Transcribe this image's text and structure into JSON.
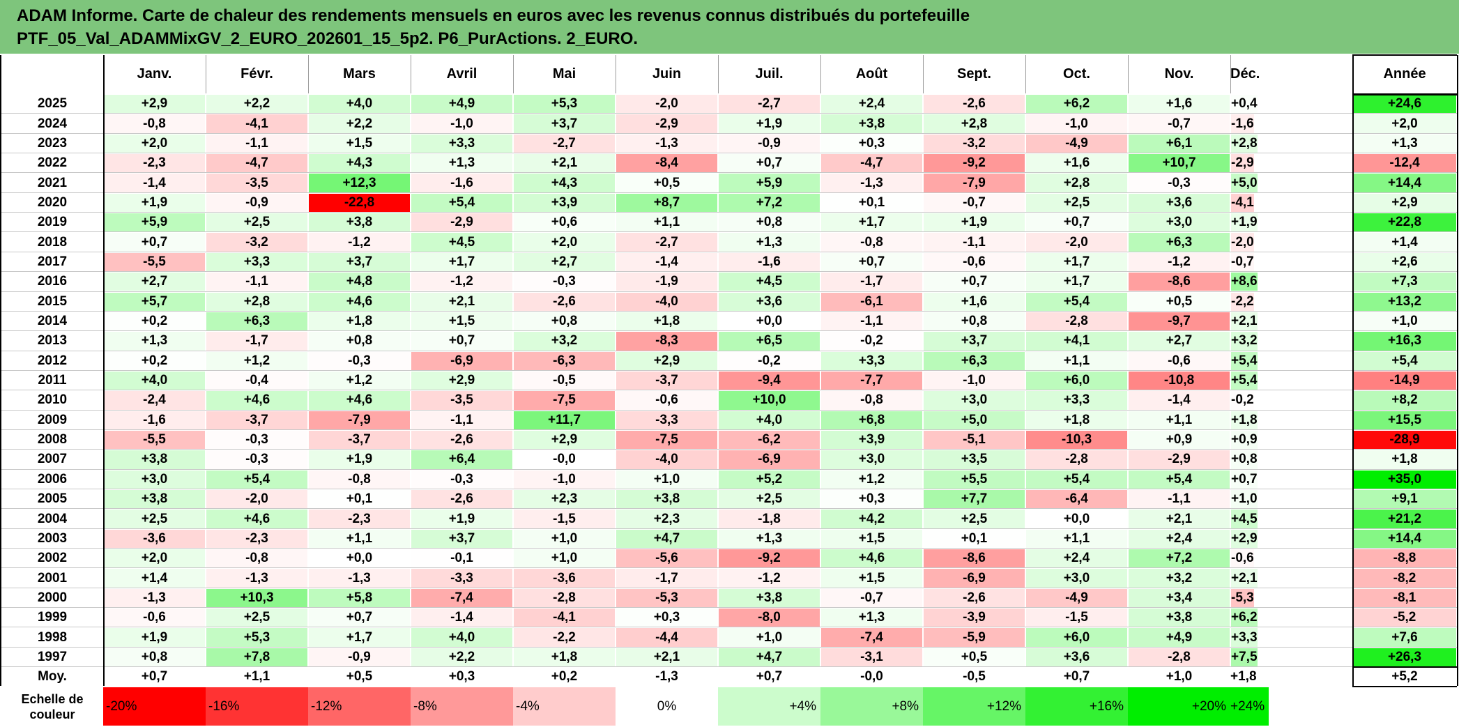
{
  "title": {
    "line1": "ADAM Informe. Carte de chaleur des rendements mensuels en euros avec les revenus connus distribués du portefeuille",
    "line2": "PTF_05_Val_ADAMMixGV_2_EURO_202601_15_5p2. P6_PurActions. 2_EURO."
  },
  "colors": {
    "title_bg": "#7ec57c",
    "negative_max": "#ff0000",
    "positive_max": "#00ee00",
    "neutral": "#ffffff"
  },
  "chart_data": {
    "type": "heatmap",
    "months": [
      "Janv.",
      "Févr.",
      "Mars",
      "Avril",
      "Mai",
      "Juin",
      "Juil.",
      "Août",
      "Sept.",
      "Oct.",
      "Nov.",
      "Déc."
    ],
    "year_header": "Année",
    "rows": [
      {
        "year": "2025",
        "values": [
          "+2,9",
          "+2,2",
          "+4,0",
          "+4,9",
          "+5,3",
          "-2,0",
          "-2,7",
          "+2,4",
          "-2,6",
          "+6,2",
          "+1,6",
          "+0,4"
        ],
        "annual": "+24,6"
      },
      {
        "year": "2024",
        "values": [
          "-0,8",
          "-4,1",
          "+2,2",
          "-1,0",
          "+3,7",
          "-2,9",
          "+1,9",
          "+3,8",
          "+2,8",
          "-1,0",
          "-0,7",
          "-1,6"
        ],
        "annual": "+2,0"
      },
      {
        "year": "2023",
        "values": [
          "+2,0",
          "-1,1",
          "+1,5",
          "+3,3",
          "-2,7",
          "-1,3",
          "-0,9",
          "+0,3",
          "-3,2",
          "-4,9",
          "+6,1",
          "+2,8"
        ],
        "annual": "+1,3"
      },
      {
        "year": "2022",
        "values": [
          "-2,3",
          "-4,7",
          "+4,3",
          "+1,3",
          "+2,1",
          "-8,4",
          "+0,7",
          "-4,7",
          "-9,2",
          "+1,6",
          "+10,7",
          "-2,9"
        ],
        "annual": "-12,4"
      },
      {
        "year": "2021",
        "values": [
          "-1,4",
          "-3,5",
          "+12,3",
          "-1,6",
          "+4,3",
          "+0,5",
          "+5,9",
          "-1,3",
          "-7,9",
          "+2,8",
          "-0,3",
          "+5,0"
        ],
        "annual": "+14,4"
      },
      {
        "year": "2020",
        "values": [
          "+1,9",
          "-0,9",
          "-22,8",
          "+5,4",
          "+3,9",
          "+8,7",
          "+7,2",
          "+0,1",
          "-0,7",
          "+2,5",
          "+3,6",
          "-4,1"
        ],
        "annual": "+2,9"
      },
      {
        "year": "2019",
        "values": [
          "+5,9",
          "+2,5",
          "+3,8",
          "-2,9",
          "+0,6",
          "+1,1",
          "+0,8",
          "+1,7",
          "+1,9",
          "+0,7",
          "+3,0",
          "+1,9"
        ],
        "annual": "+22,8"
      },
      {
        "year": "2018",
        "values": [
          "+0,7",
          "-3,2",
          "-1,2",
          "+4,5",
          "+2,0",
          "-2,7",
          "+1,3",
          "-0,8",
          "-1,1",
          "-2,0",
          "+6,3",
          "-2,0"
        ],
        "annual": "+1,4"
      },
      {
        "year": "2017",
        "values": [
          "-5,5",
          "+3,3",
          "+3,7",
          "+1,7",
          "+2,7",
          "-1,4",
          "-1,6",
          "+0,7",
          "-0,6",
          "+1,7",
          "-1,2",
          "-0,7"
        ],
        "annual": "+2,6"
      },
      {
        "year": "2016",
        "values": [
          "+2,7",
          "-1,1",
          "+4,8",
          "-1,2",
          "-0,3",
          "-1,9",
          "+4,5",
          "-1,7",
          "+0,7",
          "+1,7",
          "-8,6",
          "+8,6"
        ],
        "annual": "+7,3"
      },
      {
        "year": "2015",
        "values": [
          "+5,7",
          "+2,8",
          "+4,6",
          "+2,1",
          "-2,6",
          "-4,0",
          "+3,6",
          "-6,1",
          "+1,6",
          "+5,4",
          "+0,5",
          "-2,2"
        ],
        "annual": "+13,2"
      },
      {
        "year": "2014",
        "values": [
          "+0,2",
          "+6,3",
          "+1,8",
          "+1,5",
          "+0,8",
          "+1,8",
          "+0,0",
          "-1,1",
          "+0,8",
          "-2,8",
          "-9,7",
          "+2,1"
        ],
        "annual": "+1,0"
      },
      {
        "year": "2013",
        "values": [
          "+1,3",
          "-1,7",
          "+0,8",
          "+0,7",
          "+3,2",
          "-8,3",
          "+6,5",
          "-0,2",
          "+3,7",
          "+4,1",
          "+2,7",
          "+3,2"
        ],
        "annual": "+16,3"
      },
      {
        "year": "2012",
        "values": [
          "+0,2",
          "+1,2",
          "-0,3",
          "-6,9",
          "-6,3",
          "+2,9",
          "-0,2",
          "+3,3",
          "+6,3",
          "+1,1",
          "-0,6",
          "+5,4"
        ],
        "annual": "+5,4"
      },
      {
        "year": "2011",
        "values": [
          "+4,0",
          "-0,4",
          "+1,2",
          "+2,9",
          "-0,5",
          "-3,7",
          "-9,4",
          "-7,7",
          "-1,0",
          "+6,0",
          "-10,8",
          "+5,4"
        ],
        "annual": "-14,9"
      },
      {
        "year": "2010",
        "values": [
          "-2,4",
          "+4,6",
          "+4,6",
          "-3,5",
          "-7,5",
          "-0,6",
          "+10,0",
          "-0,8",
          "+3,0",
          "+3,3",
          "-1,4",
          "-0,2"
        ],
        "annual": "+8,2"
      },
      {
        "year": "2009",
        "values": [
          "-1,6",
          "-3,7",
          "-7,9",
          "-1,1",
          "+11,7",
          "-3,3",
          "+4,0",
          "+6,8",
          "+5,0",
          "+1,8",
          "+1,1",
          "+1,8"
        ],
        "annual": "+15,5"
      },
      {
        "year": "2008",
        "values": [
          "-5,5",
          "-0,3",
          "-3,7",
          "-2,6",
          "+2,9",
          "-7,5",
          "-6,2",
          "+3,9",
          "-5,1",
          "-10,3",
          "+0,9",
          "+0,9"
        ],
        "annual": "-28,9"
      },
      {
        "year": "2007",
        "values": [
          "+3,8",
          "-0,3",
          "+1,9",
          "+6,4",
          "-0,0",
          "-4,0",
          "-6,9",
          "+3,0",
          "+3,5",
          "-2,8",
          "-2,9",
          "+0,8"
        ],
        "annual": "+1,8"
      },
      {
        "year": "2006",
        "values": [
          "+3,0",
          "+5,4",
          "-0,8",
          "-0,3",
          "-1,0",
          "+1,0",
          "+5,2",
          "+1,2",
          "+5,5",
          "+5,4",
          "+5,4",
          "+0,7"
        ],
        "annual": "+35,0"
      },
      {
        "year": "2005",
        "values": [
          "+3,8",
          "-2,0",
          "+0,1",
          "-2,6",
          "+2,3",
          "+3,8",
          "+2,5",
          "+0,3",
          "+7,7",
          "-6,4",
          "-1,1",
          "+1,0"
        ],
        "annual": "+9,1"
      },
      {
        "year": "2004",
        "values": [
          "+2,5",
          "+4,6",
          "-2,3",
          "+1,9",
          "-1,5",
          "+2,3",
          "-1,8",
          "+4,2",
          "+2,5",
          "+0,0",
          "+2,1",
          "+4,5"
        ],
        "annual": "+21,2"
      },
      {
        "year": "2003",
        "values": [
          "-3,6",
          "-2,3",
          "+1,1",
          "+3,7",
          "+1,0",
          "+4,7",
          "+1,3",
          "+1,5",
          "+0,1",
          "+1,1",
          "+2,4",
          "+2,9"
        ],
        "annual": "+14,4"
      },
      {
        "year": "2002",
        "values": [
          "+2,0",
          "-0,8",
          "+0,0",
          "-0,1",
          "+1,0",
          "-5,6",
          "-9,2",
          "+4,6",
          "-8,6",
          "+2,4",
          "+7,2",
          "-0,6"
        ],
        "annual": "-8,8"
      },
      {
        "year": "2001",
        "values": [
          "+1,4",
          "-1,3",
          "-1,3",
          "-3,3",
          "-3,6",
          "-1,7",
          "-1,2",
          "+1,5",
          "-6,9",
          "+3,0",
          "+3,2",
          "+2,1"
        ],
        "annual": "-8,2"
      },
      {
        "year": "2000",
        "values": [
          "-1,3",
          "+10,3",
          "+5,8",
          "-7,4",
          "-2,8",
          "-5,3",
          "+3,8",
          "-0,7",
          "-2,6",
          "-4,9",
          "+3,4",
          "-5,3"
        ],
        "annual": "-8,1"
      },
      {
        "year": "1999",
        "values": [
          "-0,6",
          "+2,5",
          "+0,7",
          "-1,4",
          "-4,1",
          "+0,3",
          "-8,0",
          "+1,3",
          "-3,9",
          "-1,5",
          "+3,8",
          "+6,2"
        ],
        "annual": "-5,2"
      },
      {
        "year": "1998",
        "values": [
          "+1,9",
          "+5,3",
          "+1,7",
          "+4,0",
          "-2,2",
          "-4,4",
          "+1,0",
          "-7,4",
          "-5,9",
          "+6,0",
          "+4,9",
          "+3,3"
        ],
        "annual": "+7,6"
      },
      {
        "year": "1997",
        "values": [
          "+0,8",
          "+7,8",
          "-0,9",
          "+2,2",
          "+1,8",
          "+2,1",
          "+4,7",
          "-3,1",
          "+0,5",
          "+3,6",
          "-2,8",
          "+7,5"
        ],
        "annual": "+26,3"
      }
    ],
    "average": {
      "label": "Moy.",
      "values": [
        "+0,7",
        "+1,1",
        "+0,5",
        "+0,3",
        "+0,2",
        "-1,3",
        "+0,7",
        "-0,0",
        "-0,5",
        "+0,7",
        "+1,0",
        "+1,8"
      ],
      "annual": "+5,2"
    },
    "scale": {
      "label": "Echelle de couleur",
      "steps": [
        {
          "label": "-20%",
          "value": -20
        },
        {
          "label": "-16%",
          "value": -16
        },
        {
          "label": "-12%",
          "value": -12
        },
        {
          "label": "-8%",
          "value": -8
        },
        {
          "label": "-4%",
          "value": -4
        },
        {
          "label": "0%",
          "value": 0
        },
        {
          "label": "+4%",
          "value": 4
        },
        {
          "label": "+8%",
          "value": 8
        },
        {
          "label": "+12%",
          "value": 12
        },
        {
          "label": "+16%",
          "value": 16
        },
        {
          "label": "+20%",
          "value": 20
        },
        {
          "label": "+24%",
          "value": 24
        }
      ]
    }
  }
}
